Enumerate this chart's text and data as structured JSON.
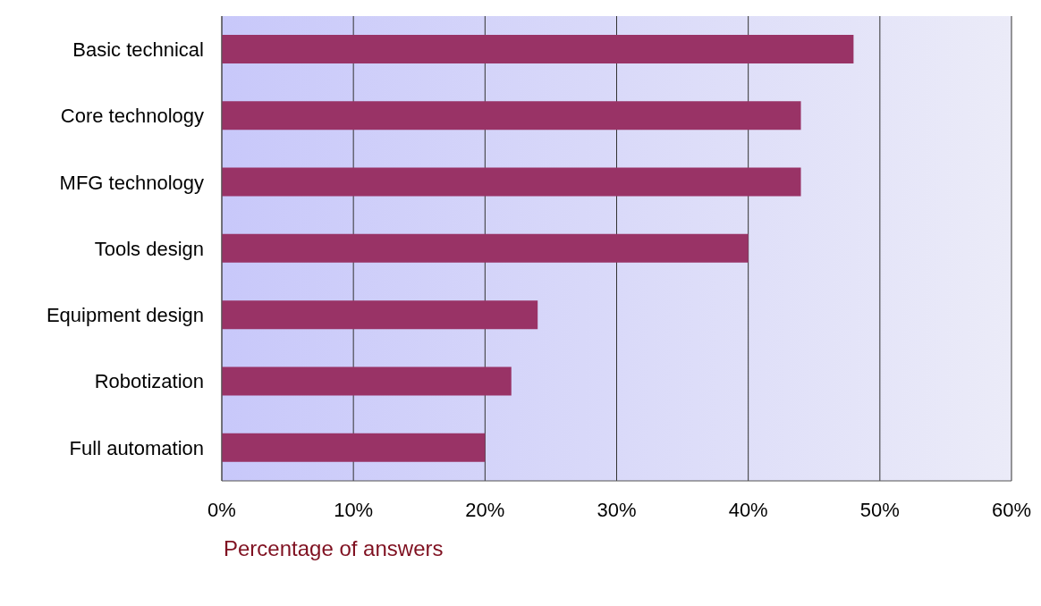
{
  "chart_data": {
    "type": "bar",
    "orientation": "horizontal",
    "xlabel": "Percentage of answers",
    "categories": [
      "Basic technical",
      "Core technology",
      "MFG technology",
      "Tools design",
      "Equipment design",
      "Robotization",
      "Full automation"
    ],
    "values": [
      48,
      44,
      44,
      40,
      24,
      22,
      20
    ],
    "color": "#993366",
    "xlim": [
      0,
      60
    ],
    "xticks": [
      {
        "value": 0,
        "label": "0%"
      },
      {
        "value": 10,
        "label": "10%"
      },
      {
        "value": 20,
        "label": "20%"
      },
      {
        "value": 30,
        "label": "30%"
      },
      {
        "value": 40,
        "label": "40%"
      },
      {
        "value": 50,
        "label": "50%"
      },
      {
        "value": 60,
        "label": "60%"
      }
    ],
    "grid": "x",
    "legend": false
  }
}
